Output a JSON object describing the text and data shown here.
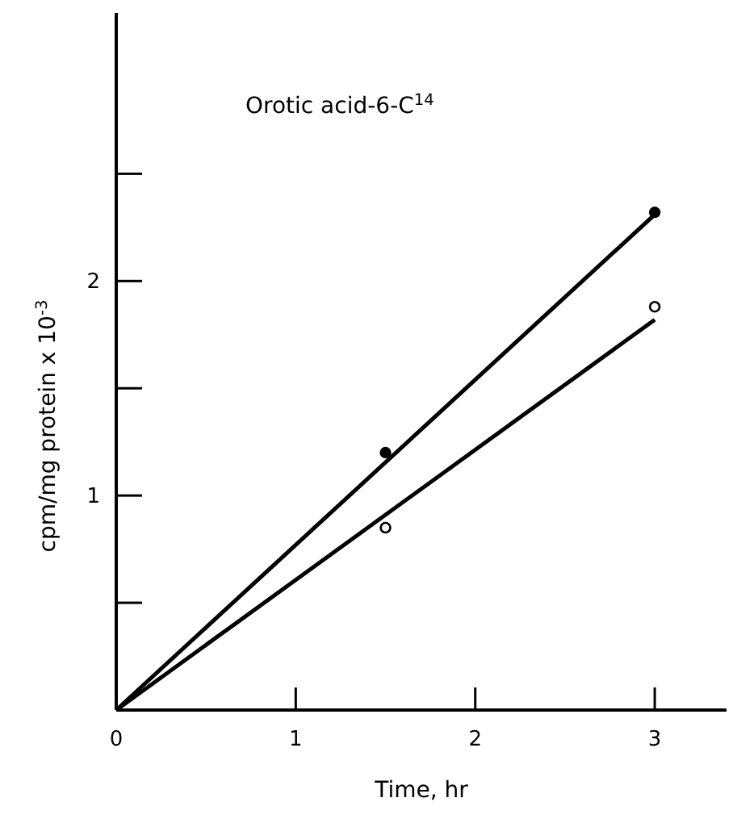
{
  "chart_data": {
    "type": "scatter",
    "xlabel": "Time, hr",
    "ylabel": "cpm/mg protein x 10$^{-3}$",
    "annotations": [
      "Orotic acid-6-C$^{14}$"
    ],
    "xlim": [
      0,
      3.4
    ],
    "ylim": [
      0,
      3.25
    ],
    "xticks": [
      0,
      1,
      2,
      3
    ],
    "yticks": [
      {
        "value": 0,
        "label": null
      },
      {
        "value": 0.5,
        "label": null
      },
      1,
      {
        "value": 1.5,
        "label": null
      },
      2,
      {
        "value": 2.5,
        "label": null
      }
    ],
    "grid": false,
    "series": [
      {
        "color": "#000000",
        "marker": "circle",
        "x": [
          1.5,
          3
        ],
        "values": [
          1.2,
          2.32
        ]
      },
      {
        "color": "#ffffff",
        "marker": "circle",
        "x": [
          1.5,
          3
        ],
        "values": [
          0.85,
          1.88
        ]
      },
      {
        "type": "line",
        "color": "#000000",
        "marker": "none",
        "x": [
          0,
          3
        ],
        "values": [
          0,
          2.31
        ]
      },
      {
        "type": "line",
        "color": "#000000",
        "marker": "none",
        "x": [
          0,
          3
        ],
        "values": [
          0,
          1.82
        ]
      }
    ]
  }
}
